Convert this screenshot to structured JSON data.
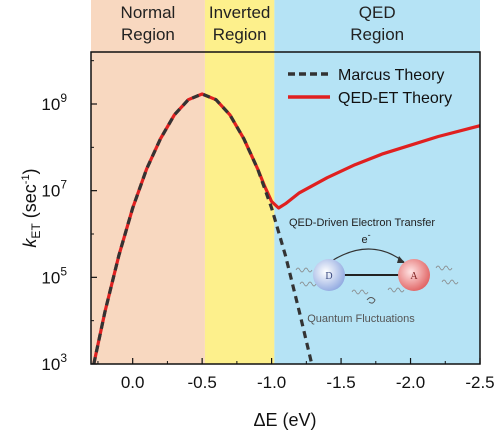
{
  "chart_data": {
    "type": "line",
    "x_scale": "reversed",
    "y_scale": "log",
    "xlim": [
      0.3,
      -2.5
    ],
    "ylim_exponent": [
      3,
      10.2
    ],
    "xlabel": "ΔE (eV)",
    "xticks": [
      {
        "value": 0.0,
        "label": "0.0"
      },
      {
        "value": -0.5,
        "label": "-0.5"
      },
      {
        "value": -1.0,
        "label": "-1.0"
      },
      {
        "value": -1.5,
        "label": "-1.5"
      },
      {
        "value": -2.0,
        "label": "-2.0"
      },
      {
        "value": -2.5,
        "label": "-2.5"
      }
    ],
    "yticks": [
      {
        "exponent": 3,
        "base": "10",
        "exp_label": "3"
      },
      {
        "exponent": 5,
        "base": "10",
        "exp_label": "5"
      },
      {
        "exponent": 7,
        "base": "10",
        "exp_label": "7"
      },
      {
        "exponent": 9,
        "base": "10",
        "exp_label": "9"
      }
    ],
    "ylabel": {
      "main": "k",
      "sub": "ET",
      "unit_open": " (sec",
      "unit_sup": "-1",
      "unit_close": ")"
    },
    "regions": [
      {
        "name": "Normal Region",
        "line1": "Normal",
        "line2": "Region",
        "x_start": 0.3,
        "x_end": -0.52,
        "color": "#f8d8c0"
      },
      {
        "name": "Inverted Region",
        "line1": "Inverted",
        "line2": "Region",
        "x_start": -0.52,
        "x_end": -1.02,
        "color": "#fdf08c"
      },
      {
        "name": "QED Region",
        "line1": "QED",
        "line2": "Region",
        "x_start": -1.02,
        "x_end": -2.5,
        "color": "#b5e3f5"
      }
    ],
    "series": [
      {
        "name": "Marcus Theory",
        "style": "dashed",
        "color": "#333333",
        "x": [
          0.28,
          0.2,
          0.1,
          0.0,
          -0.1,
          -0.2,
          -0.3,
          -0.4,
          -0.5,
          -0.6,
          -0.7,
          -0.8,
          -0.9,
          -1.0,
          -1.1,
          -1.2,
          -1.3
        ],
        "log10_y": [
          3.0,
          4.2,
          5.5,
          6.6,
          7.5,
          8.2,
          8.75,
          9.1,
          9.23,
          9.1,
          8.75,
          8.2,
          7.5,
          6.6,
          5.5,
          4.2,
          2.85
        ]
      },
      {
        "name": "QED-ET Theory",
        "style": "solid",
        "color": "#e02020",
        "x": [
          0.28,
          0.2,
          0.1,
          0.0,
          -0.1,
          -0.2,
          -0.3,
          -0.4,
          -0.5,
          -0.6,
          -0.7,
          -0.8,
          -0.9,
          -0.95,
          -1.0,
          -1.05,
          -1.1,
          -1.2,
          -1.4,
          -1.6,
          -1.8,
          -2.0,
          -2.2,
          -2.5
        ],
        "log10_y": [
          3.0,
          4.2,
          5.5,
          6.6,
          7.5,
          8.2,
          8.75,
          9.1,
          9.23,
          9.1,
          8.75,
          8.2,
          7.5,
          7.1,
          6.75,
          6.6,
          6.7,
          6.95,
          7.3,
          7.6,
          7.85,
          8.05,
          8.25,
          8.5
        ]
      }
    ],
    "legend": {
      "position": "top-right"
    }
  },
  "inset": {
    "title": "QED-Driven Electron Transfer",
    "electron": "e",
    "electron_sup": "-",
    "donor": "D",
    "acceptor": "A",
    "caption": "Quantum Fluctuations"
  }
}
